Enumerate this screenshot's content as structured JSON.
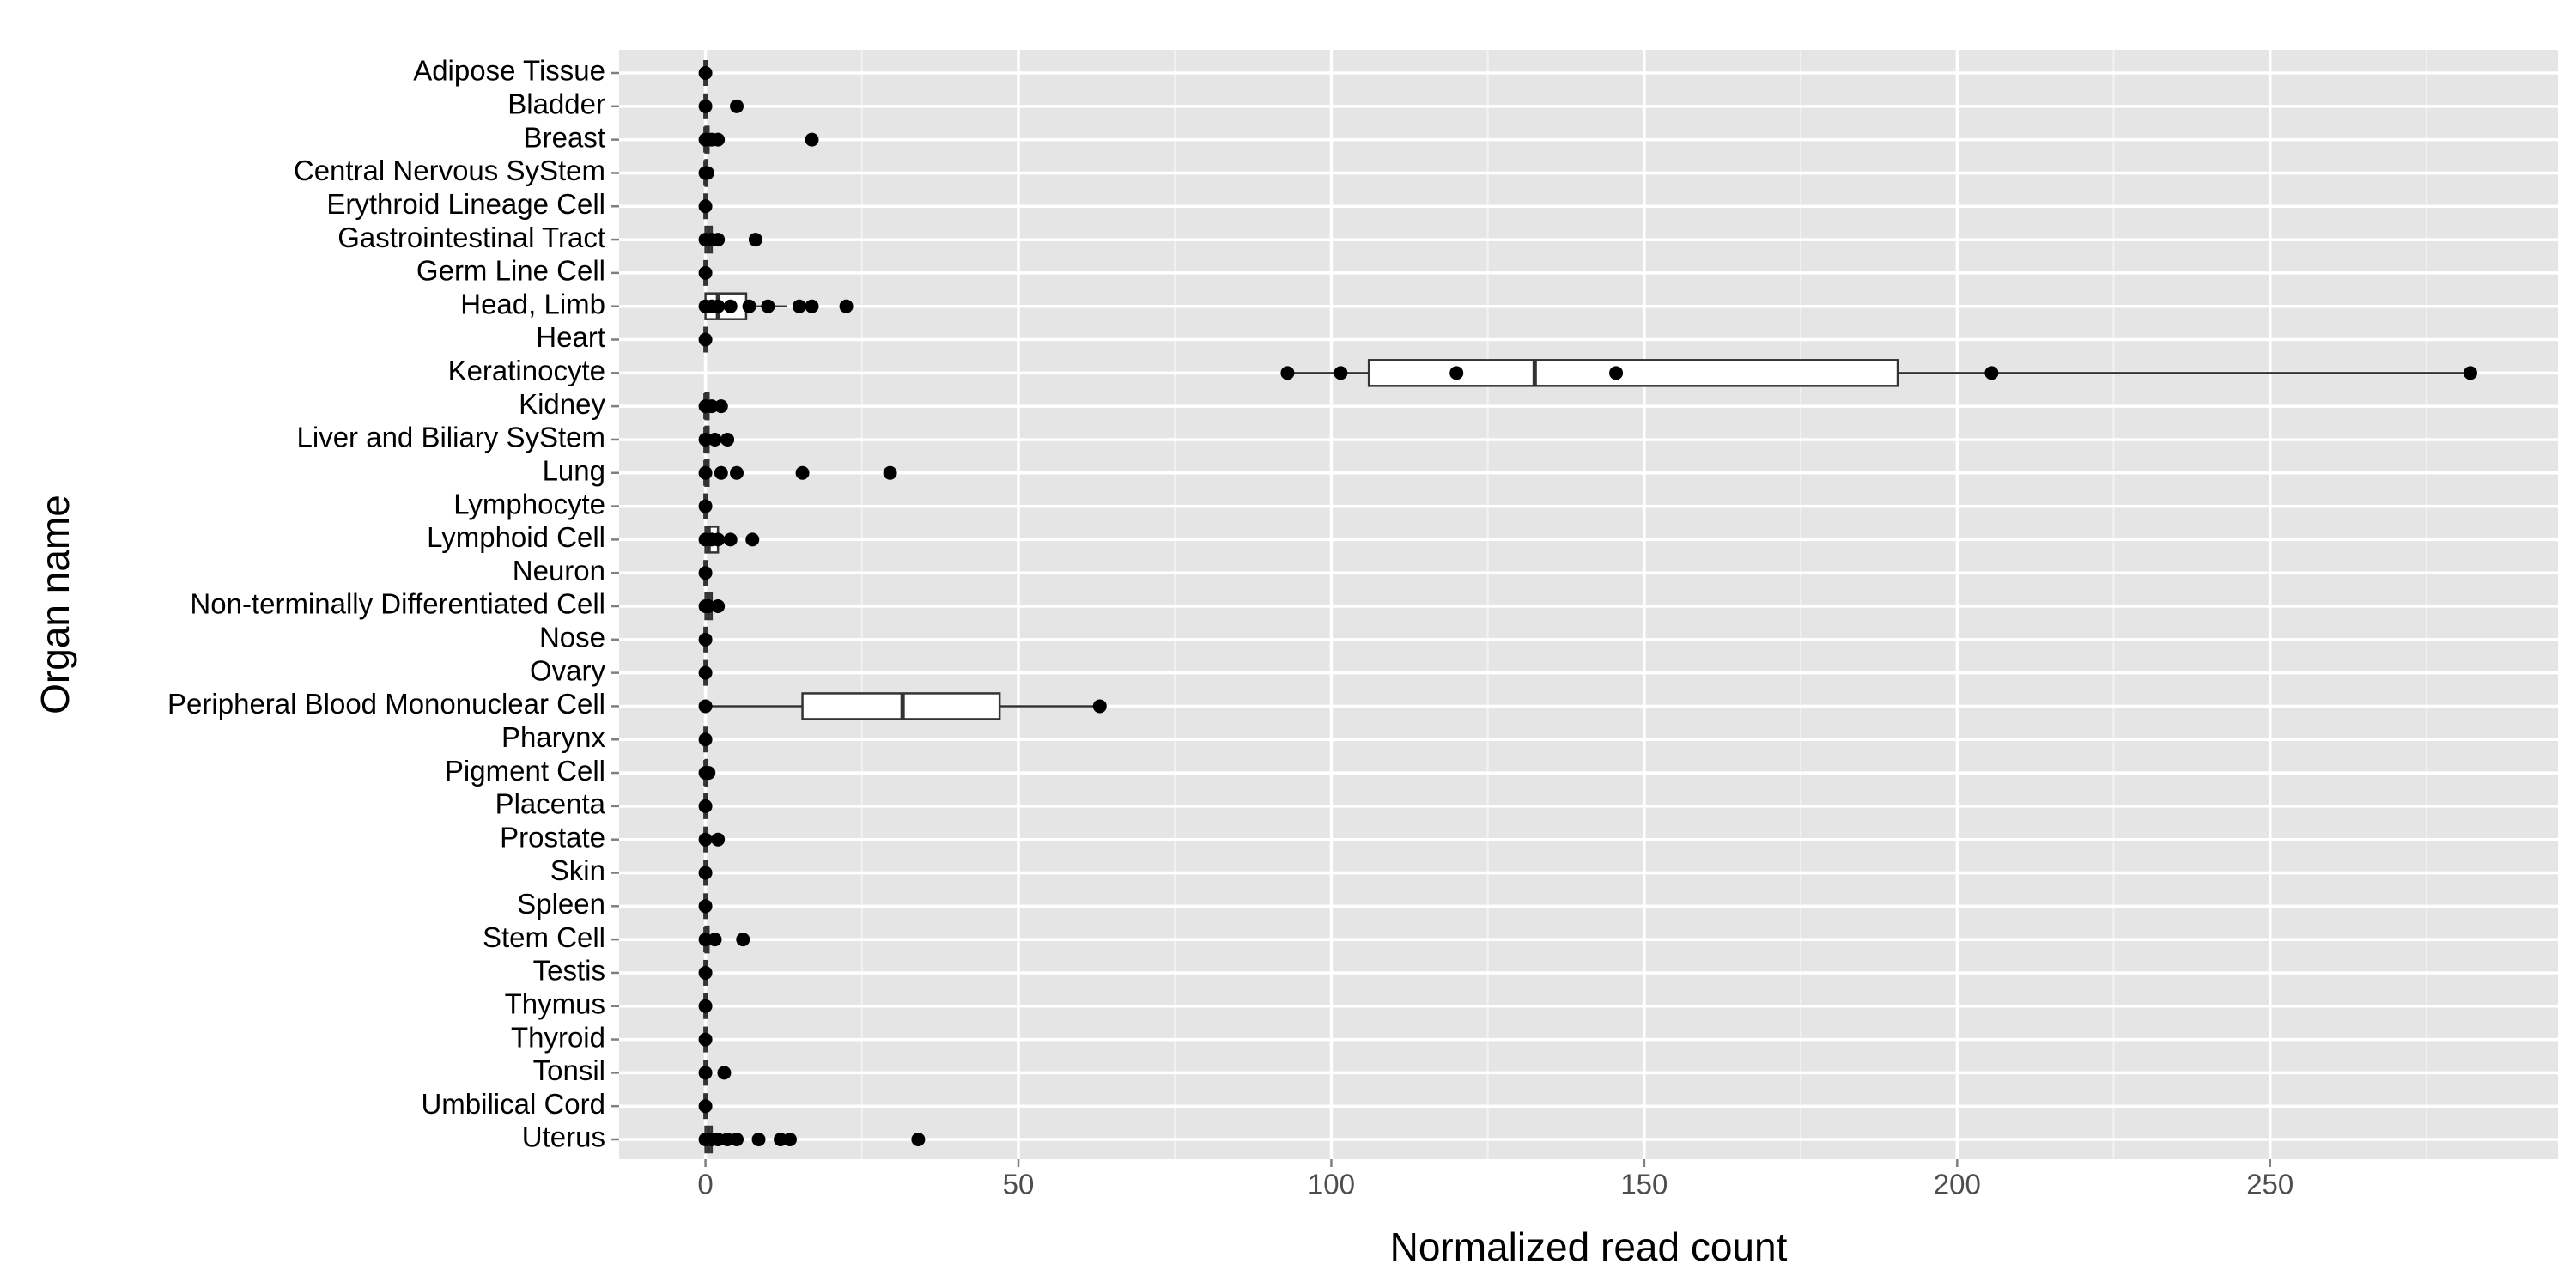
{
  "chart_data": {
    "type": "boxplot",
    "orientation": "horizontal",
    "x_label": "Normalized read count",
    "y_label": "Organ name",
    "categories": [
      "Adipose Tissue",
      "Bladder",
      "Breast",
      "Central Nervous SyStem",
      "Erythroid Lineage Cell",
      "Gastrointestinal Tract",
      "Germ Line Cell",
      "Head, Limb",
      "Heart",
      "Keratinocyte",
      "Kidney",
      "Liver and Biliary SyStem",
      "Lung",
      "Lymphocyte",
      "Lymphoid Cell",
      "Neuron",
      "Non-terminally Differentiated Cell",
      "Nose",
      "Ovary",
      "Peripheral Blood Mononuclear Cell",
      "Pharynx",
      "Pigment Cell",
      "Placenta",
      "Prostate",
      "Skin",
      "Spleen",
      "Stem Cell",
      "Testis",
      "Thymus",
      "Thyroid",
      "Tonsil",
      "Umbilical Cord",
      "Uterus"
    ],
    "boxes": [
      {
        "min": 0,
        "q1": 0,
        "median": 0,
        "q3": 0,
        "max": 0
      },
      {
        "min": 0,
        "q1": 0,
        "median": 0,
        "q3": 0,
        "max": 0
      },
      {
        "min": 0,
        "q1": 0,
        "median": 0,
        "q3": 0.5,
        "max": 1
      },
      {
        "min": 0,
        "q1": 0,
        "median": 0,
        "q3": 0.3,
        "max": 0.5
      },
      {
        "min": 0,
        "q1": 0,
        "median": 0,
        "q3": 0,
        "max": 0
      },
      {
        "min": 0,
        "q1": 0,
        "median": 0.5,
        "q3": 1,
        "max": 2
      },
      {
        "min": 0,
        "q1": 0,
        "median": 0,
        "q3": 0,
        "max": 0
      },
      {
        "min": 0,
        "q1": 0,
        "median": 2,
        "q3": 6.5,
        "max": 13
      },
      {
        "min": 0,
        "q1": 0,
        "median": 0,
        "q3": 0,
        "max": 0
      },
      {
        "min": 93,
        "q1": 106,
        "median": 132.5,
        "q3": 190.5,
        "max": 282
      },
      {
        "min": 0,
        "q1": 0,
        "median": 0,
        "q3": 0.5,
        "max": 1
      },
      {
        "min": 0,
        "q1": 0,
        "median": 0,
        "q3": 0.5,
        "max": 1
      },
      {
        "min": 0,
        "q1": 0,
        "median": 0,
        "q3": 0.5,
        "max": 1
      },
      {
        "min": 0,
        "q1": 0,
        "median": 0,
        "q3": 0,
        "max": 0
      },
      {
        "min": 0,
        "q1": 0,
        "median": 0.5,
        "q3": 2,
        "max": 3
      },
      {
        "min": 0,
        "q1": 0,
        "median": 0,
        "q3": 0,
        "max": 0
      },
      {
        "min": 0,
        "q1": 0,
        "median": 0.5,
        "q3": 1,
        "max": 2
      },
      {
        "min": 0,
        "q1": 0,
        "median": 0,
        "q3": 0,
        "max": 0
      },
      {
        "min": 0,
        "q1": 0,
        "median": 0,
        "q3": 0,
        "max": 0
      },
      {
        "min": 0,
        "q1": 15.5,
        "median": 31.5,
        "q3": 47,
        "max": 63
      },
      {
        "min": 0,
        "q1": 0,
        "median": 0,
        "q3": 0,
        "max": 0
      },
      {
        "min": 0,
        "q1": 0,
        "median": 0,
        "q3": 0.3,
        "max": 0.5
      },
      {
        "min": 0,
        "q1": 0,
        "median": 0,
        "q3": 0,
        "max": 0
      },
      {
        "min": 0,
        "q1": 0,
        "median": 0,
        "q3": 0,
        "max": 0
      },
      {
        "min": 0,
        "q1": 0,
        "median": 0,
        "q3": 0,
        "max": 0
      },
      {
        "min": 0,
        "q1": 0,
        "median": 0,
        "q3": 0,
        "max": 0
      },
      {
        "min": 0,
        "q1": 0,
        "median": 0,
        "q3": 0.5,
        "max": 1.5
      },
      {
        "min": 0,
        "q1": 0,
        "median": 0,
        "q3": 0,
        "max": 0
      },
      {
        "min": 0,
        "q1": 0,
        "median": 0,
        "q3": 0,
        "max": 0
      },
      {
        "min": 0,
        "q1": 0,
        "median": 0,
        "q3": 0,
        "max": 0
      },
      {
        "min": 0,
        "q1": 0,
        "median": 0,
        "q3": 0,
        "max": 0
      },
      {
        "min": 0,
        "q1": 0,
        "median": 0,
        "q3": 0,
        "max": 0
      },
      {
        "min": 0,
        "q1": 0,
        "median": 0.5,
        "q3": 1,
        "max": 2.5
      }
    ],
    "points": [
      [
        0
      ],
      [
        0,
        5
      ],
      [
        0,
        1,
        2,
        17
      ],
      [
        0,
        0.3
      ],
      [
        0
      ],
      [
        0,
        1,
        2,
        8
      ],
      [
        0
      ],
      [
        0,
        1,
        2,
        4,
        7,
        10,
        15,
        17,
        22.5
      ],
      [
        0
      ],
      [
        93,
        101.5,
        120,
        145.5,
        205.5,
        282
      ],
      [
        0,
        1,
        2.5
      ],
      [
        0,
        1.5,
        3.5
      ],
      [
        0,
        2.5,
        5,
        15.5,
        29.5
      ],
      [
        0
      ],
      [
        0,
        1,
        2,
        4,
        7.5
      ],
      [
        0
      ],
      [
        0,
        0.5,
        2
      ],
      [
        0
      ],
      [
        0
      ],
      [
        0,
        63
      ],
      [
        0
      ],
      [
        0,
        0.5
      ],
      [
        0
      ],
      [
        0,
        2
      ],
      [
        0
      ],
      [
        0
      ],
      [
        0,
        1.5,
        6
      ],
      [
        0
      ],
      [
        0
      ],
      [
        0
      ],
      [
        0,
        3
      ],
      [
        0
      ],
      [
        0,
        1,
        2,
        3.5,
        5,
        8.5,
        12,
        13.5,
        34
      ]
    ],
    "xlim": [
      -13.8,
      296
    ],
    "xticks": [
      0,
      50,
      100,
      150,
      200,
      250
    ],
    "xminor": [
      25,
      75,
      125,
      175,
      225,
      275
    ],
    "grid": true,
    "panel_color": "#e5e5e5",
    "box_fill": "#ffffff",
    "line_color": "#333333",
    "point_color": "#000000"
  }
}
